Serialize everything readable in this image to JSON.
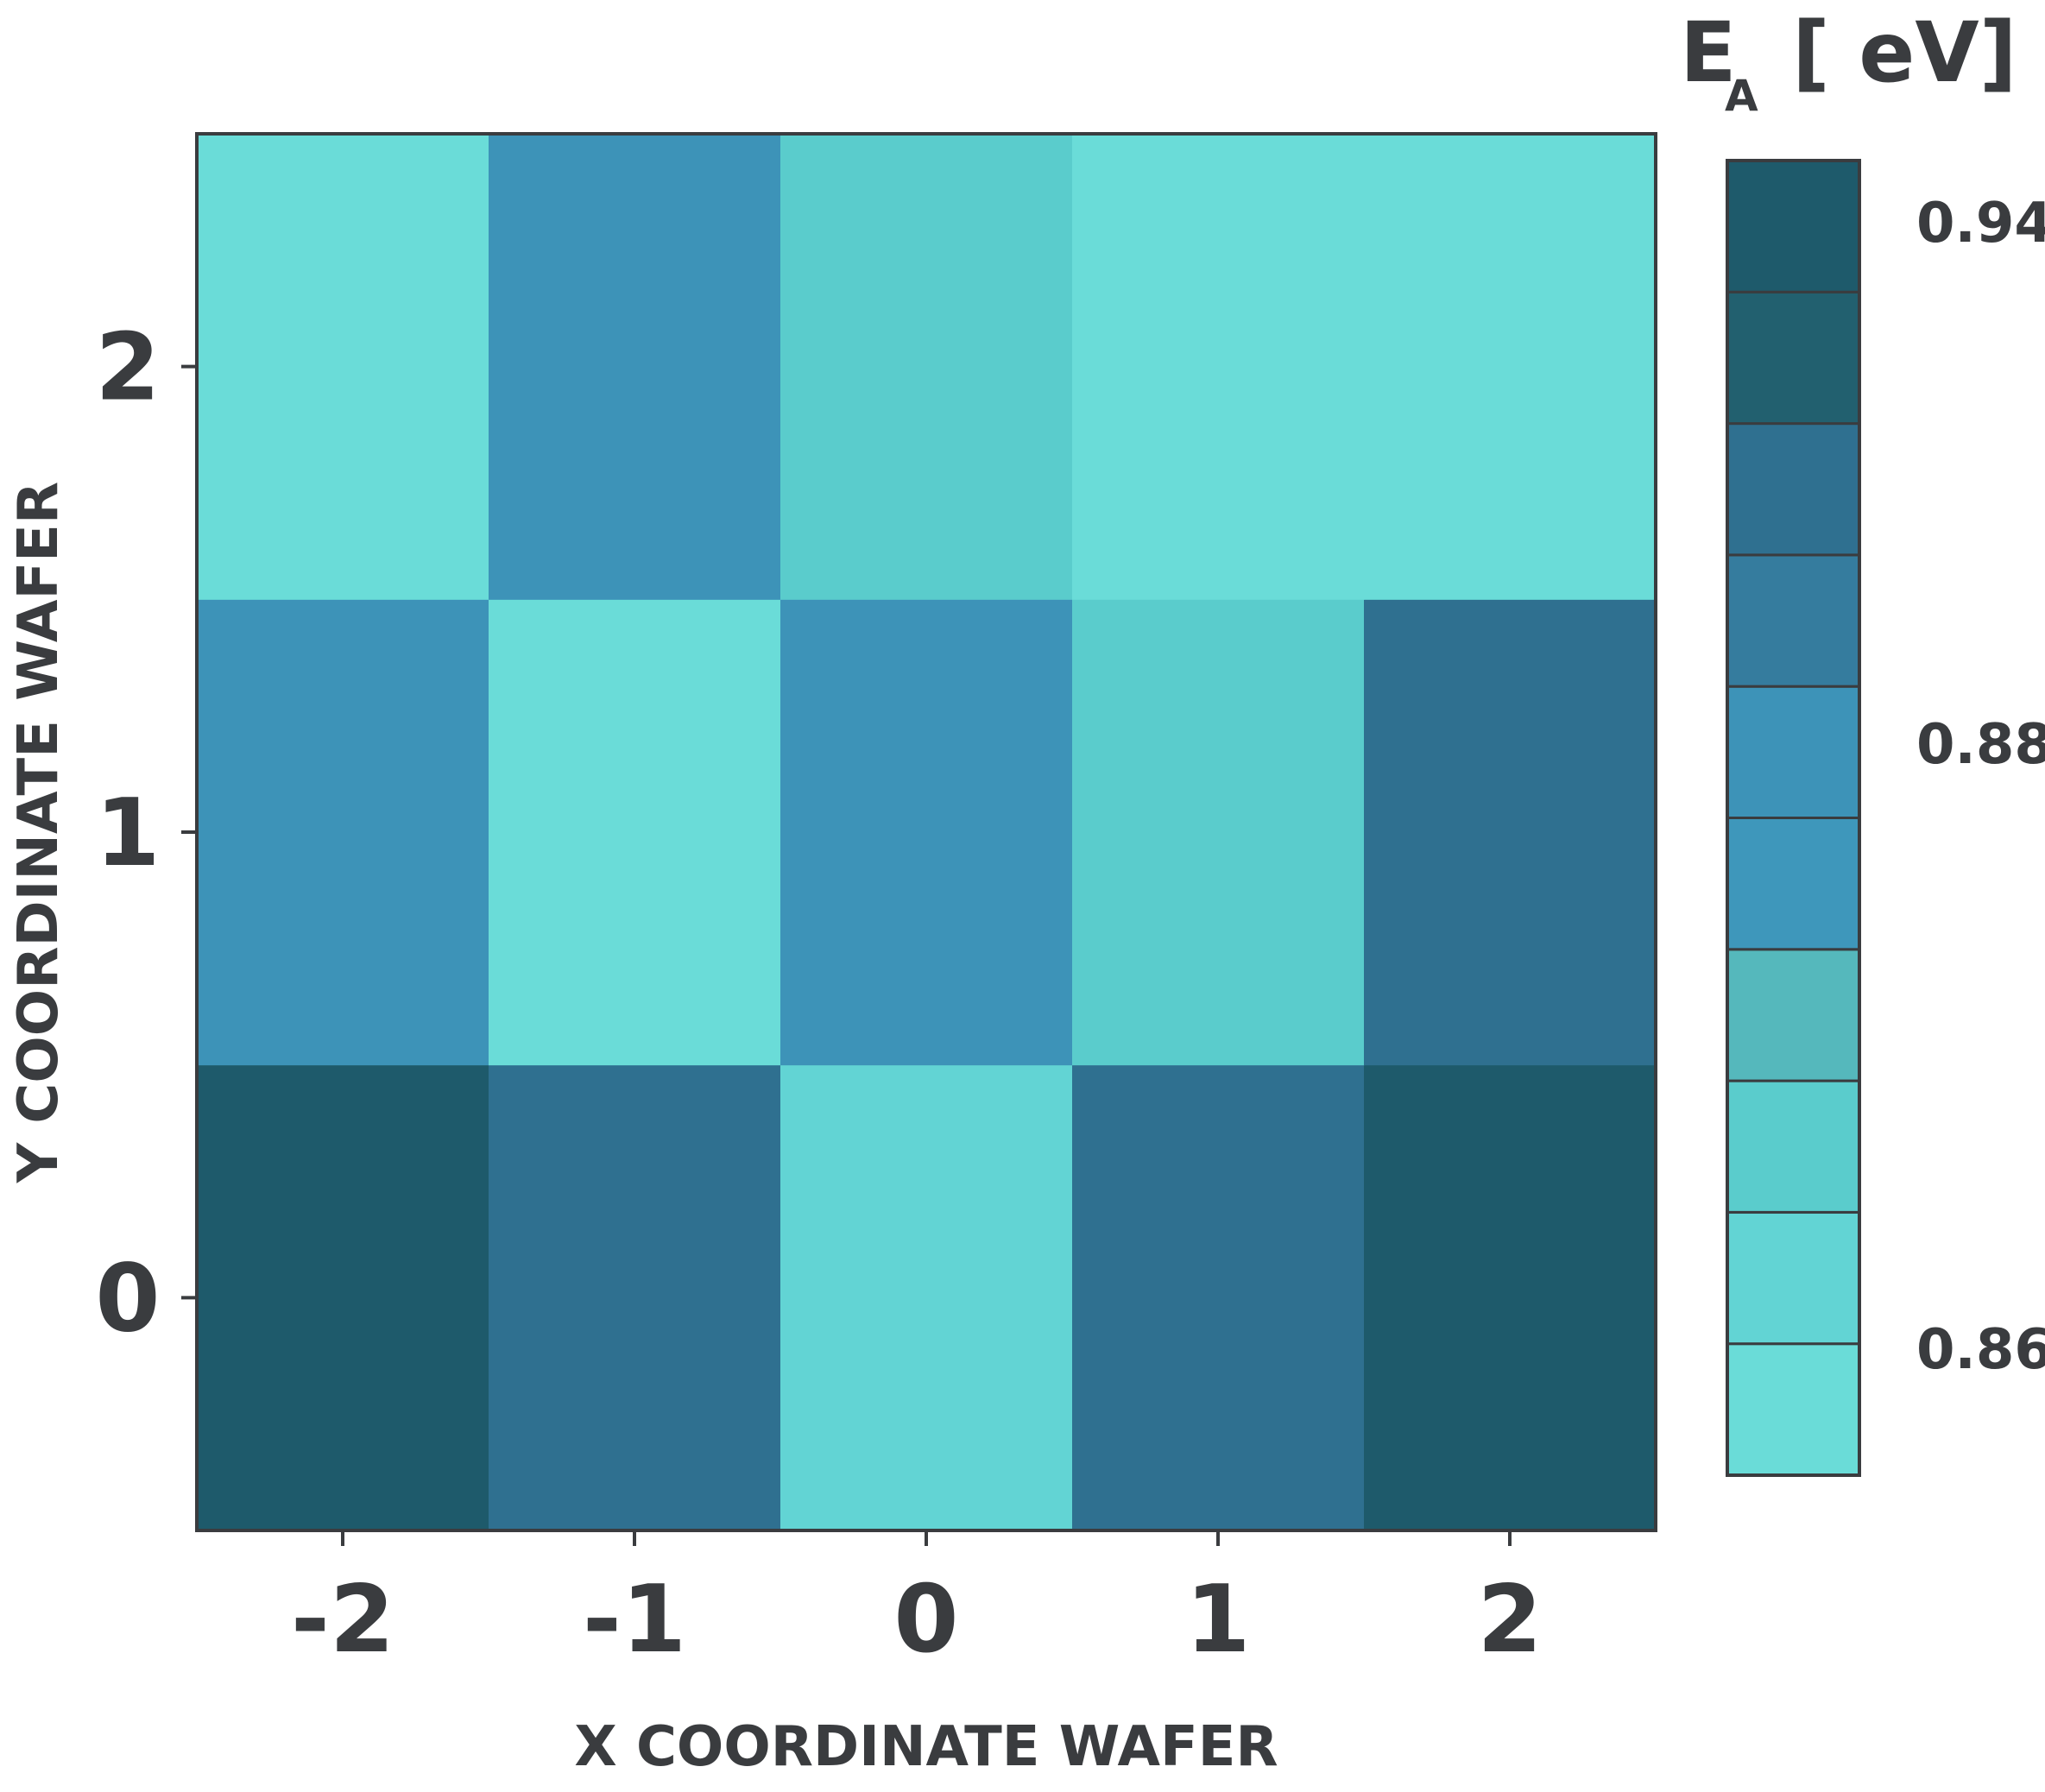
{
  "chart_data": {
    "type": "heatmap",
    "title": "",
    "xlabel": "X COORDINATE WAFER",
    "ylabel": "Y COORDINATE WAFER",
    "x": [
      -2,
      -1,
      0,
      1,
      2
    ],
    "y": [
      0,
      1,
      2
    ],
    "x_tick_labels": [
      "-2",
      "-1",
      "0",
      "1",
      "2"
    ],
    "y_tick_labels": [
      "0",
      "1",
      "2"
    ],
    "values": [
      [
        0.935,
        0.915,
        0.855,
        0.915,
        0.935
      ],
      [
        0.895,
        0.845,
        0.895,
        0.86,
        0.915
      ],
      [
        0.845,
        0.895,
        0.865,
        0.845,
        0.845
      ]
    ],
    "colorbar": {
      "title_main": "E",
      "title_sub": "A",
      "title_unit": "[ eV]",
      "tick_labels": [
        "0.94",
        "0.88",
        "0.86"
      ],
      "tick_values": [
        0.94,
        0.88,
        0.86
      ],
      "levels": [
        0.84,
        0.85,
        0.86,
        0.87,
        0.88,
        0.89,
        0.9,
        0.91,
        0.92,
        0.93,
        0.94
      ],
      "colors": [
        "#6adcd8",
        "#62d4d4",
        "#5acccc",
        "#55b8bc",
        "#3e97bb",
        "#3d93b8",
        "#357c9e",
        "#2f7090",
        "#22606f",
        "#1e5a6b"
      ]
    },
    "grid": false,
    "text_color": "#3a3c3f",
    "frame_color": "#3a3c3f"
  }
}
